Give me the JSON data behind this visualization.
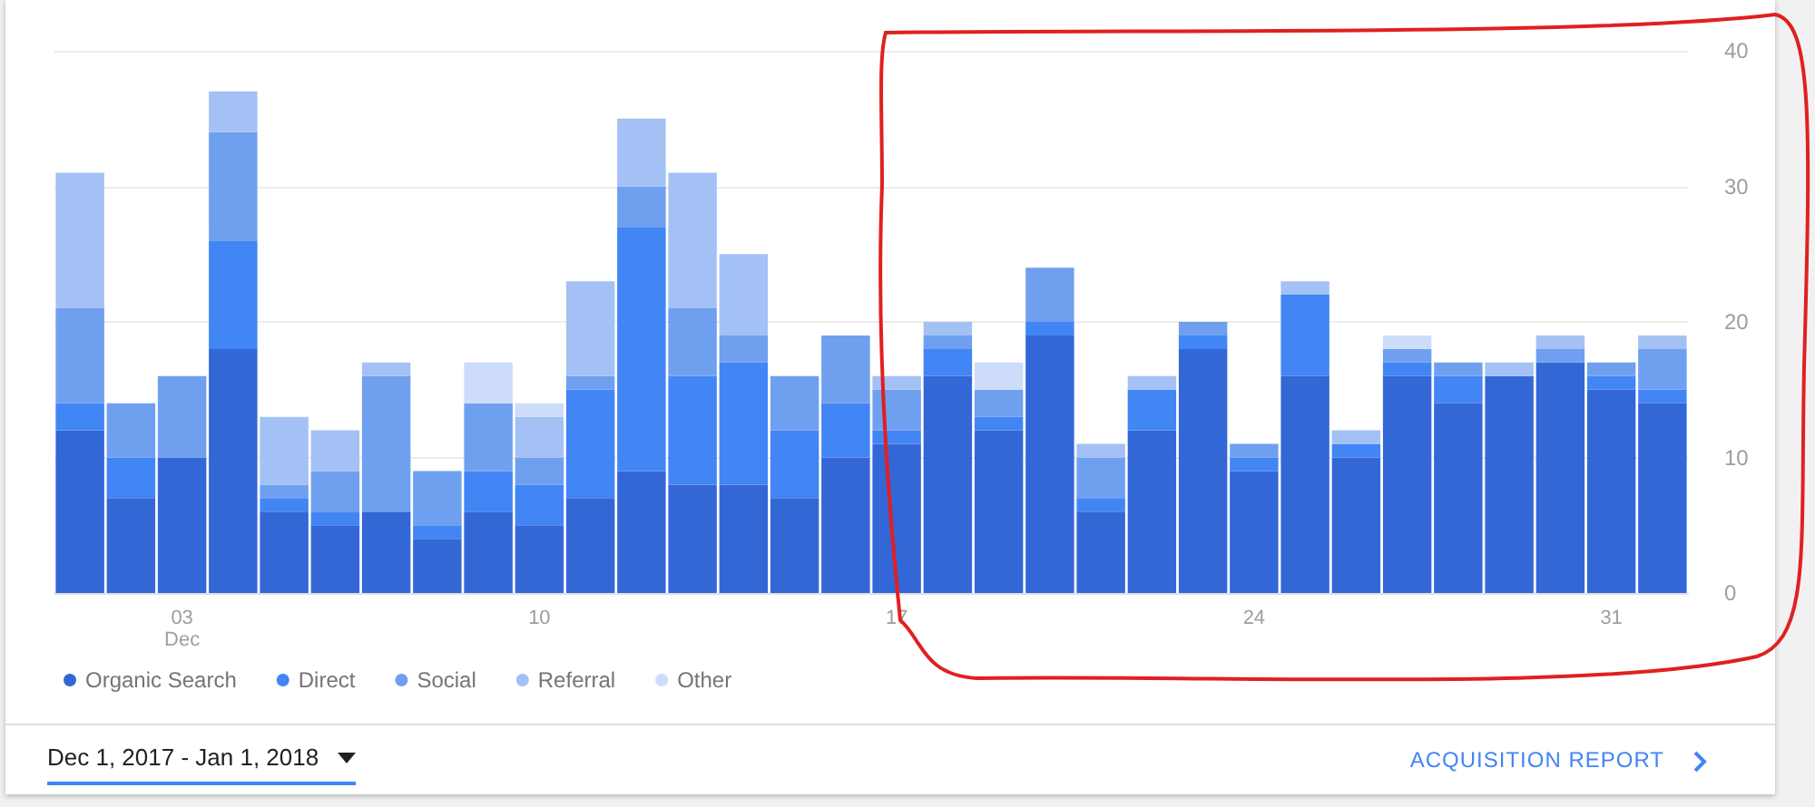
{
  "chart_data": {
    "type": "bar",
    "stacked": true,
    "categories": [
      null,
      null,
      "03\nDec",
      null,
      null,
      null,
      null,
      null,
      null,
      "10",
      null,
      null,
      null,
      null,
      null,
      null,
      "17",
      null,
      null,
      null,
      null,
      null,
      null,
      "24",
      null,
      null,
      null,
      null,
      null,
      null,
      "31",
      null
    ],
    "series": [
      {
        "name": "Organic Search",
        "color": "#3367d6",
        "values": [
          12,
          7,
          10,
          18,
          6,
          5,
          6,
          4,
          6,
          5,
          7,
          9,
          8,
          8,
          7,
          10,
          11,
          16,
          12,
          19,
          6,
          12,
          18,
          9,
          16,
          10,
          16,
          14,
          16,
          17,
          15,
          14
        ]
      },
      {
        "name": "Direct",
        "color": "#4285f4",
        "values": [
          2,
          3,
          0,
          8,
          1,
          1,
          0,
          1,
          3,
          3,
          8,
          18,
          8,
          9,
          5,
          4,
          1,
          2,
          1,
          1,
          1,
          3,
          1,
          1,
          6,
          1,
          1,
          2,
          0,
          0,
          1,
          1
        ]
      },
      {
        "name": "Social",
        "color": "#6fa0f0",
        "values": [
          7,
          4,
          6,
          8,
          1,
          3,
          10,
          4,
          5,
          2,
          1,
          3,
          5,
          2,
          4,
          5,
          3,
          1,
          2,
          4,
          3,
          0,
          1,
          1,
          0,
          0,
          1,
          1,
          0,
          1,
          1,
          3
        ]
      },
      {
        "name": "Referral",
        "color": "#a3c1f5",
        "values": [
          10,
          0,
          0,
          3,
          5,
          3,
          1,
          0,
          0,
          3,
          7,
          5,
          10,
          6,
          0,
          0,
          1,
          1,
          0,
          0,
          1,
          1,
          0,
          0,
          1,
          1,
          0,
          0,
          1,
          1,
          0,
          1
        ]
      },
      {
        "name": "Other",
        "color": "#cddcf9",
        "values": [
          0,
          0,
          0,
          0,
          0,
          0,
          0,
          0,
          3,
          1,
          0,
          0,
          0,
          0,
          0,
          0,
          0,
          0,
          2,
          0,
          0,
          0,
          0,
          0,
          0,
          0,
          1,
          0,
          0,
          0,
          0,
          0
        ]
      }
    ],
    "ylim": [
      0,
      40
    ],
    "yticks": [
      0,
      10,
      20,
      30,
      40
    ],
    "grid": true,
    "legend": "bottom left",
    "annotations": [
      "Dec 1, 2017 - Jan 1, 2018",
      "ACQUISITION REPORT"
    ]
  }
}
